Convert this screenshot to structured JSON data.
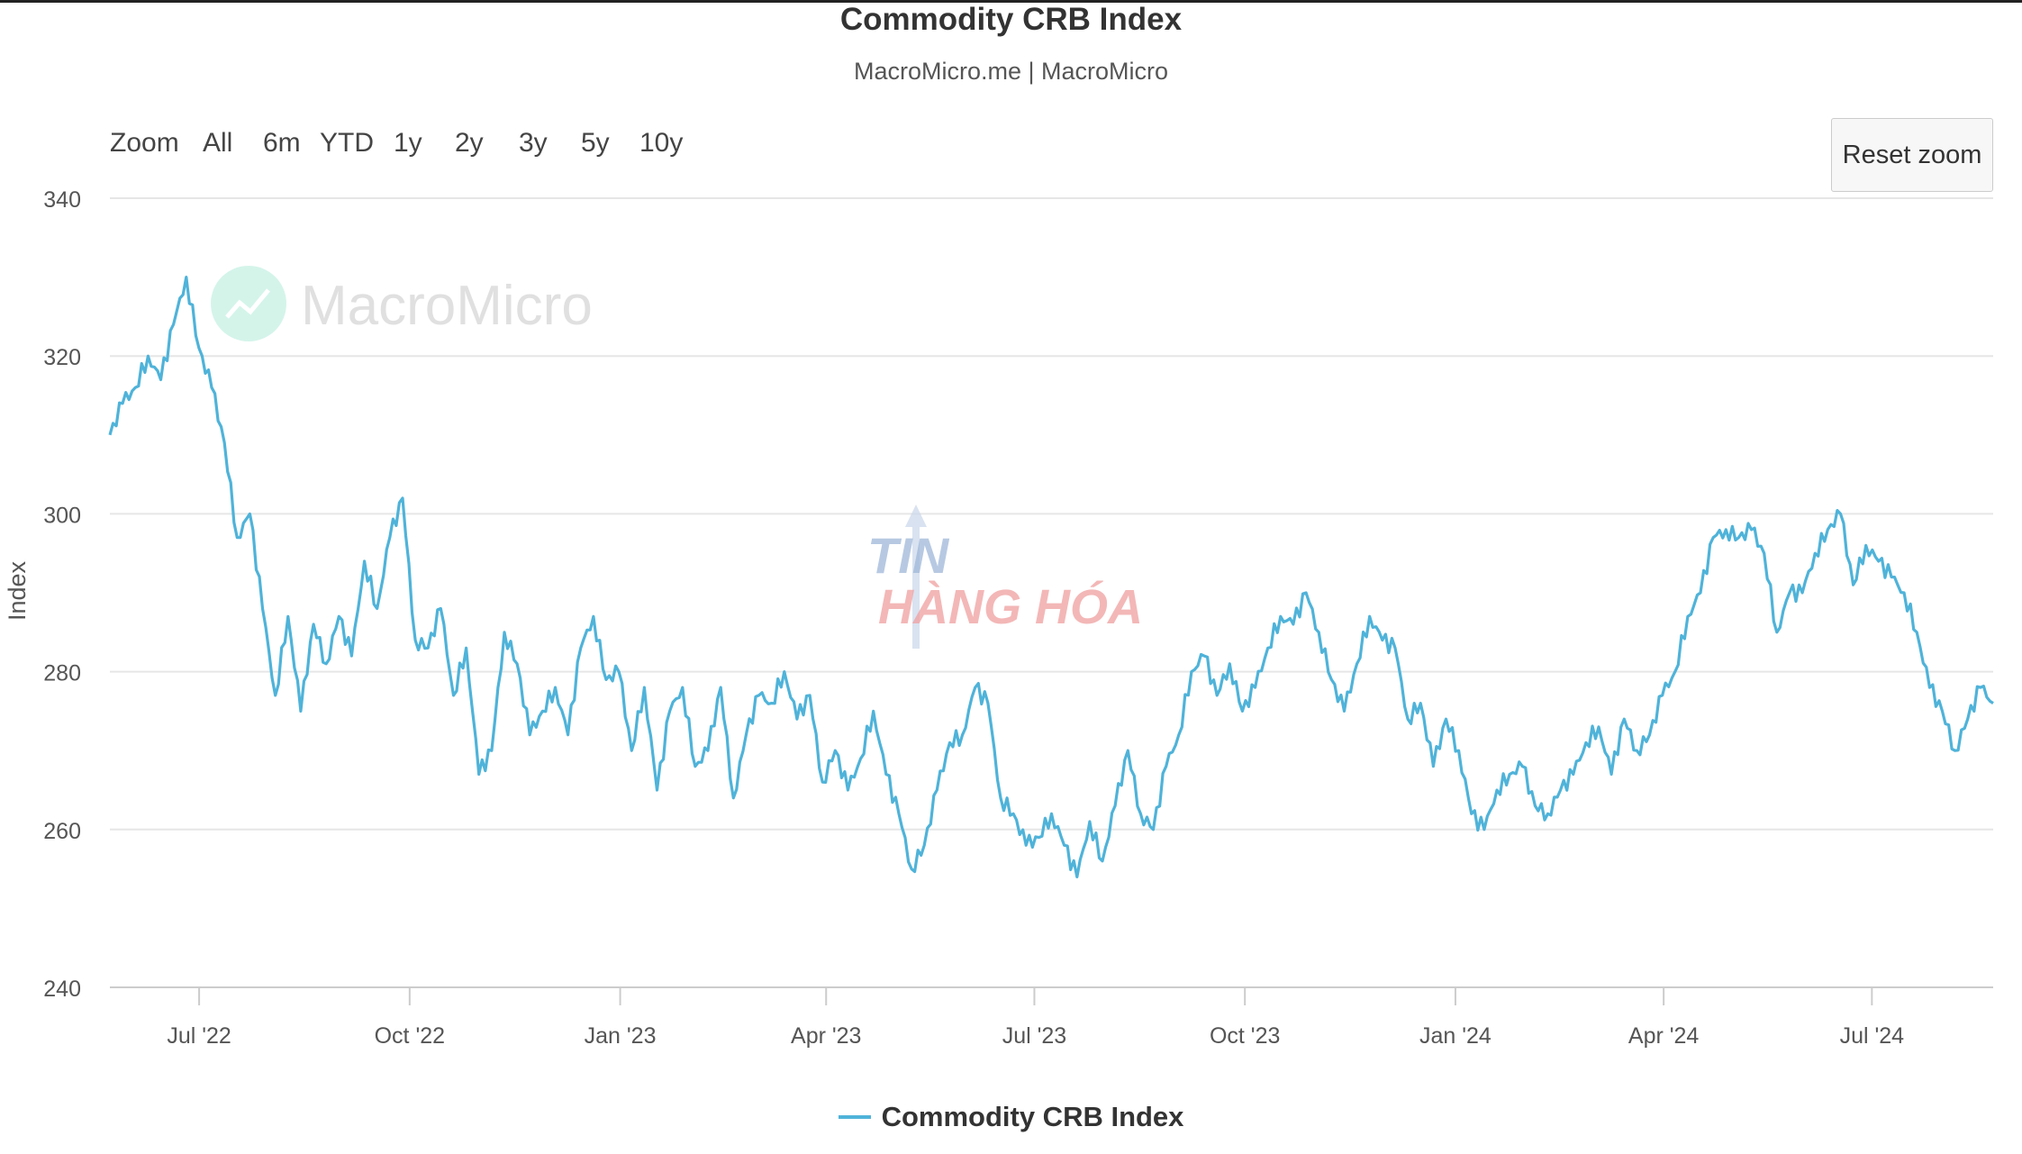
{
  "chart_data": {
    "type": "line",
    "title": "Commodity CRB Index",
    "subtitle": "MacroMicro.me | MacroMicro",
    "xlabel": "",
    "ylabel": "Index",
    "ylim": [
      240,
      340
    ],
    "yticks": [
      240,
      260,
      280,
      300,
      320,
      340
    ],
    "xticks": [
      "Jul '22",
      "Oct '22",
      "Jan '23",
      "Apr '23",
      "Jul '23",
      "Oct '23",
      "Jan '24",
      "Apr '24",
      "Jul '24"
    ],
    "legend": "bottom-center",
    "grid": true,
    "series": [
      {
        "name": "Commodity CRB Index",
        "color": "#4fb3d9",
        "x_start": "2022-05-23",
        "x_end": "2024-08-23",
        "values": [
          310,
          314,
          316,
          320,
          317,
          324,
          330,
          321,
          316,
          309,
          297,
          300,
          288,
          277,
          287,
          275,
          286,
          281,
          287,
          282,
          294,
          288,
          297,
          302,
          284,
          283,
          288,
          277,
          283,
          267,
          270,
          285,
          281,
          272,
          275,
          278,
          272,
          283,
          287,
          279,
          280,
          270,
          278,
          265,
          275,
          278,
          268,
          270,
          278,
          264,
          272,
          277,
          276,
          280,
          274,
          277,
          266,
          270,
          265,
          269,
          275,
          267,
          262,
          255,
          258,
          265,
          271,
          272,
          278,
          276,
          264,
          262,
          258,
          259,
          262,
          258,
          254,
          261,
          256,
          263,
          270,
          262,
          260,
          268,
          272,
          280,
          282,
          277,
          281,
          275,
          278,
          283,
          287,
          286,
          290,
          285,
          279,
          275,
          281,
          287,
          284,
          283,
          274,
          276,
          268,
          274,
          270,
          262,
          260,
          265,
          267,
          268,
          263,
          262,
          265,
          267,
          271,
          273,
          267,
          274,
          270,
          272,
          277,
          280,
          287,
          290,
          297,
          298,
          297,
          298,
          295,
          285,
          290,
          290,
          295,
          298,
          300,
          291,
          296,
          294,
          292,
          290,
          285,
          278,
          275,
          270,
          274,
          278,
          276
        ]
      }
    ]
  },
  "range_selector": {
    "label": "Zoom",
    "buttons": [
      "All",
      "6m",
      "YTD",
      "1y",
      "2y",
      "3y",
      "5y",
      "10y"
    ]
  },
  "reset_zoom_label": "Reset zoom",
  "watermark_text": "MacroMicro",
  "overlay_logo_lines": [
    "TIN",
    "HÀNG HÓA"
  ],
  "colors": {
    "line": "#4fb3d9",
    "grid": "#e6e6e6",
    "watermark": "#e0e0e0",
    "watermark_icon": "#b8ecdc",
    "overlay_blue": "#9fb8d9",
    "overlay_red": "#f0a0a0"
  }
}
